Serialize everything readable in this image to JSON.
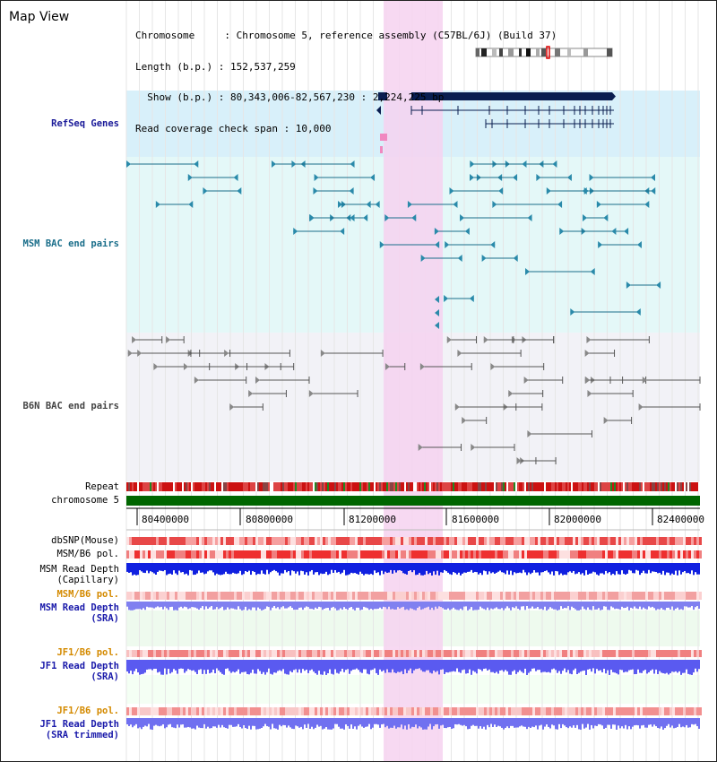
{
  "header": {
    "title": "Map View",
    "info_lines": [
      "Chromosome     : Chromosome 5, reference assembly (C57BL/6J) (Build 37)",
      "Length (b.p.) : 152,537,259",
      "  Show (b.p.) : 80,343,006-82,567,230 : 2,224,225 bp",
      "Read coverage check span : 10,000"
    ]
  },
  "tracks": {
    "refseq": "RefSeq Genes",
    "msm_bac": "MSM BAC end pairs",
    "b6n_bac": "B6N BAC end pairs",
    "repeat": "Repeat",
    "chromosome": "chromosome 5",
    "dbsnp": "dbSNP(Mouse)",
    "msm_b6_pol": "MSM/B6 pol.",
    "msm_depth_cap_1": "MSM Read Depth",
    "msm_depth_cap_2": "(Capillary)",
    "msm_b6_pol_sra": "MSM/B6 pol.",
    "msm_depth_sra_1": "MSM Read Depth",
    "msm_depth_sra_2": "(SRA)",
    "jf1_b6_pol": "JF1/B6 pol.",
    "jf1_depth_1": "JF1 Read Depth",
    "jf1_depth_2": "(SRA)",
    "jf1_b6_pol_t": "JF1/B6 pol.",
    "jf1_depth_t_1": "JF1 Read Depth",
    "jf1_depth_t_2": "(SRA trimmed)"
  },
  "ruler": {
    "ticks": [
      "80400000",
      "80800000",
      "81200000",
      "81600000",
      "82000000",
      "82400000"
    ]
  },
  "colors": {
    "refseq_label": "#1a1a99",
    "msm_label": "#1a6e8a",
    "b6n_label": "#444444",
    "gold_label": "#d48a00",
    "blue_label": "#1a1aaa",
    "highlight": "#f6d2f0",
    "refseq_band": "#d8f0fa",
    "msm_band": "#e4f8f8",
    "b6n_band": "#f2f2f7",
    "chromosome_bar": "#006600"
  }
}
